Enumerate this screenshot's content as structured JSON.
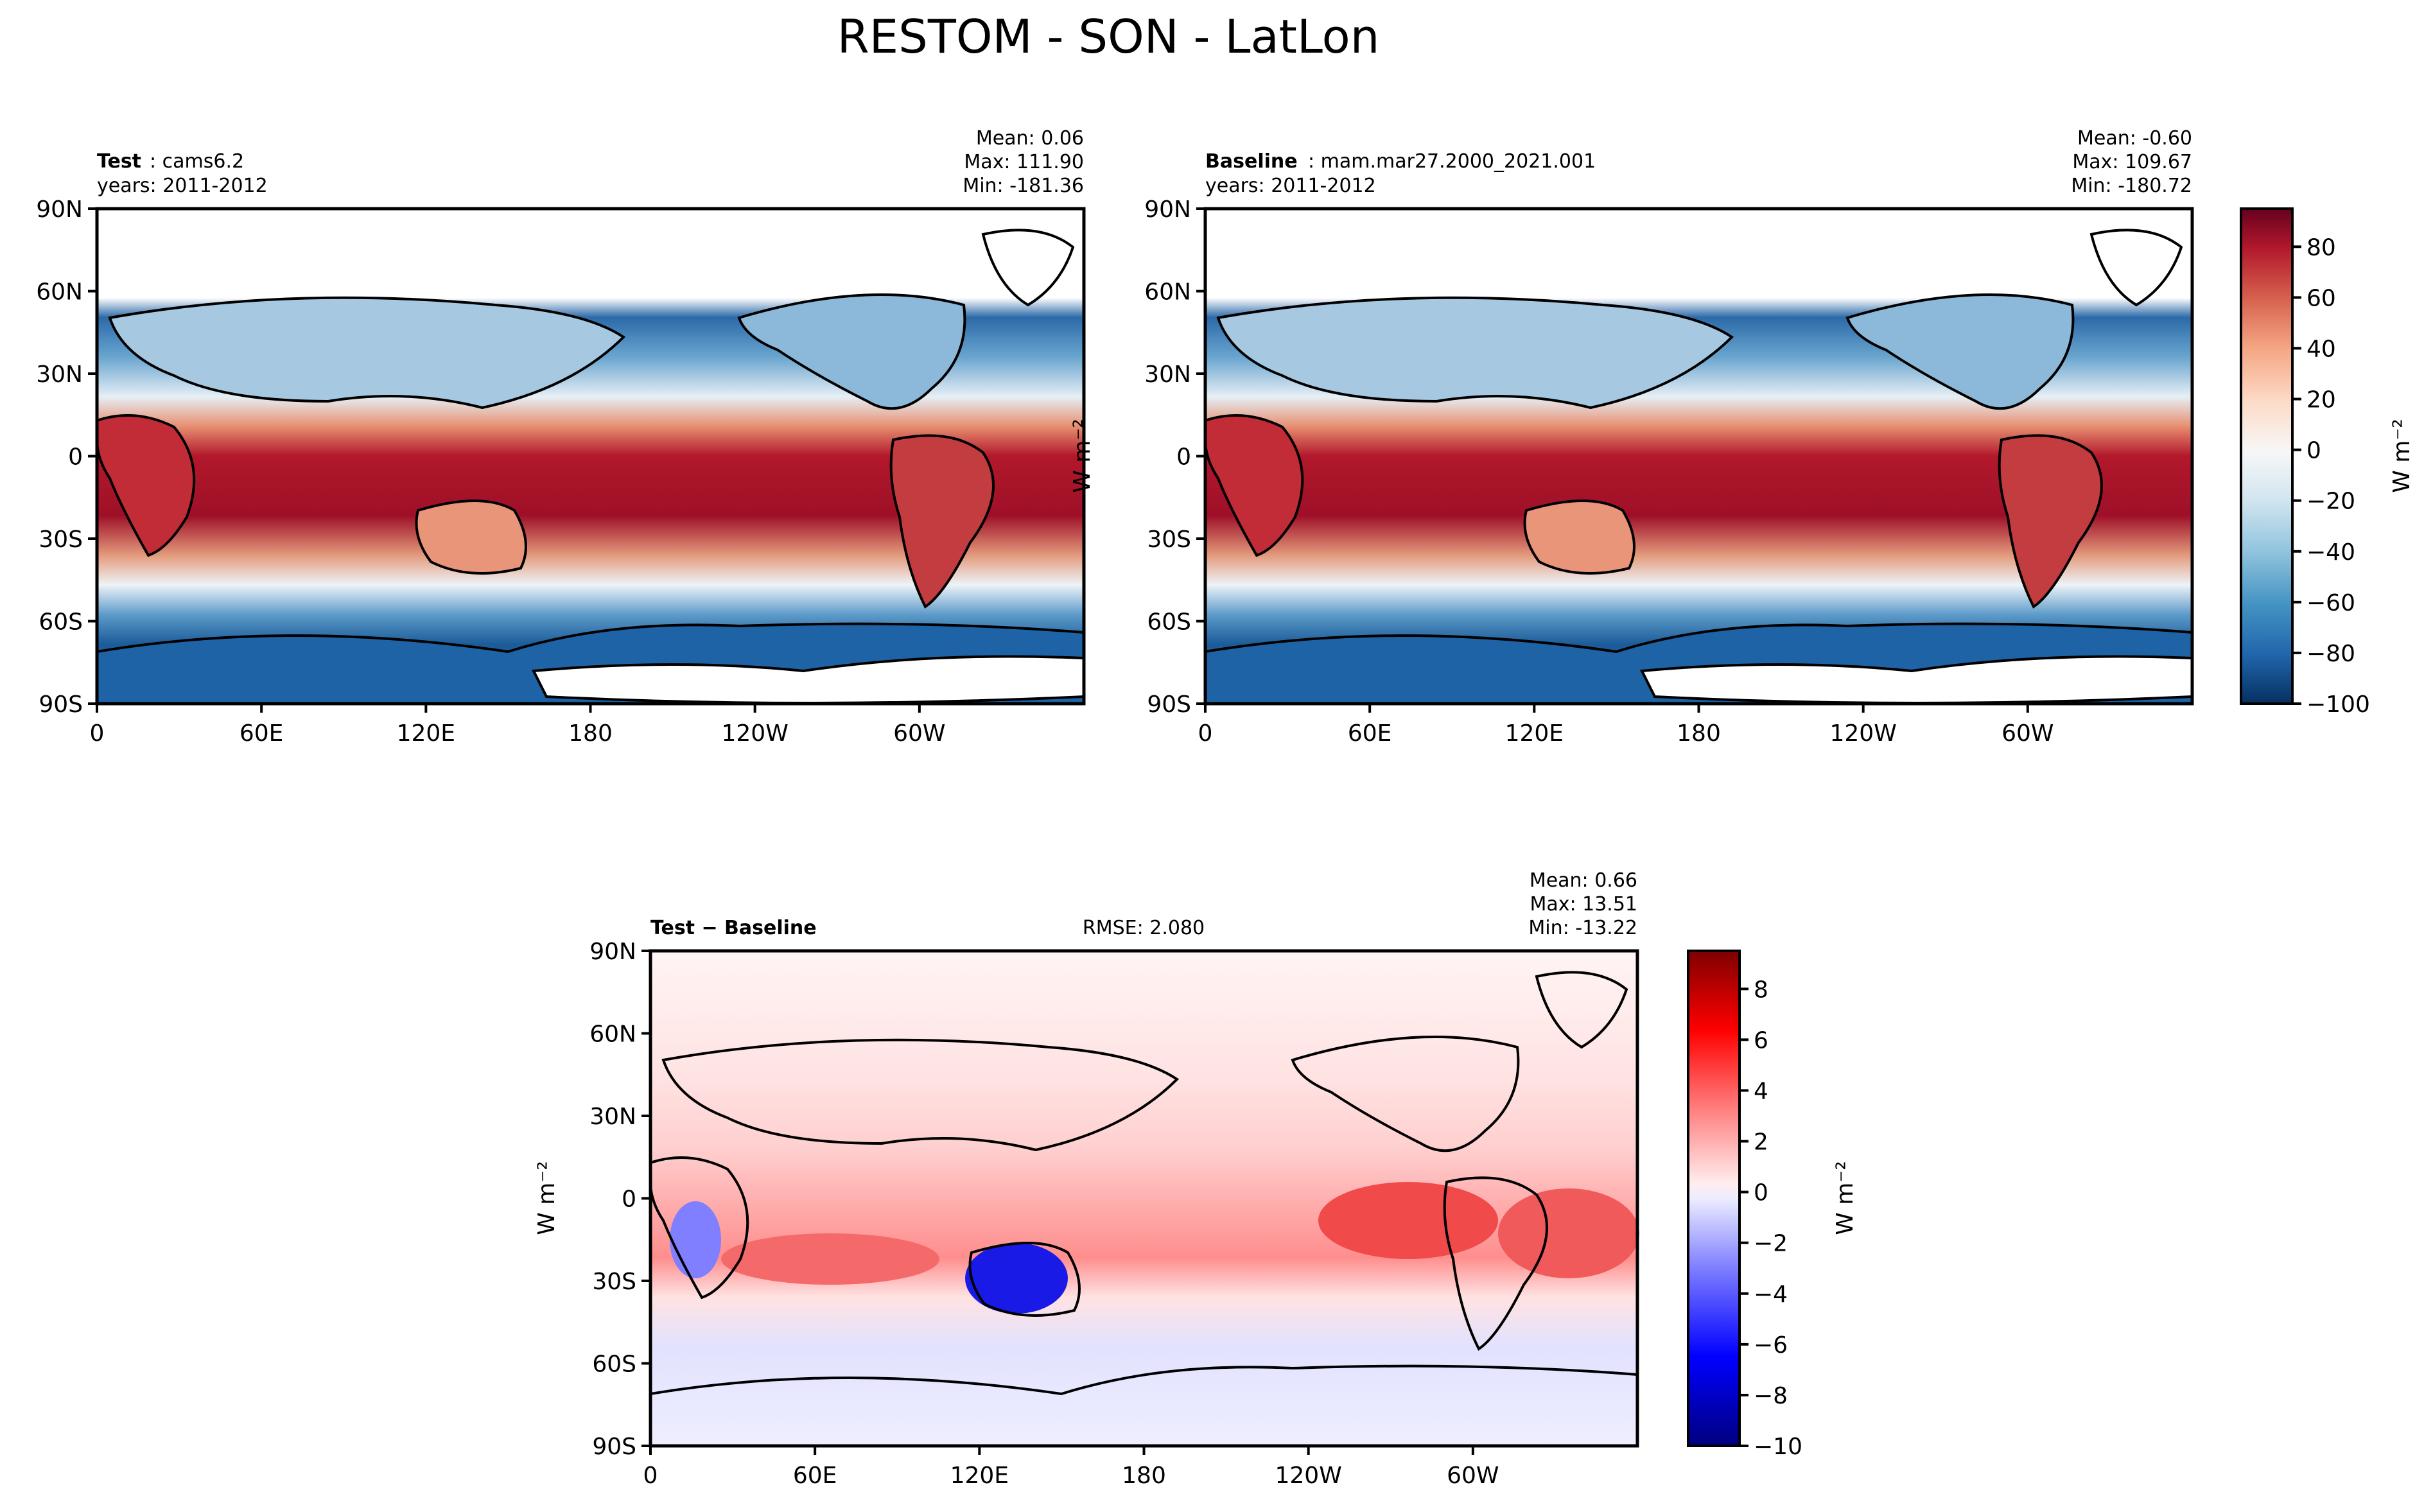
{
  "figure": {
    "title": "RESTOM - SON - LatLon"
  },
  "chart_data": [
    {
      "type": "heatmap",
      "panel": "test",
      "label_bold": "Test",
      "label_rest": ": cams6.2",
      "years": "years: 2011-2012",
      "stats": {
        "mean": "Mean:  0.06",
        "max": "Max: 111.90",
        "min": "Min: -181.36"
      },
      "x_ticks": [
        "0",
        "60E",
        "120E",
        "180",
        "120W",
        "60W"
      ],
      "x_tick_lons": [
        0,
        60,
        120,
        180,
        240,
        300
      ],
      "y_ticks": [
        "90N",
        "60N",
        "30N",
        "0",
        "30S",
        "60S",
        "90S"
      ],
      "y_tick_lats": [
        90,
        60,
        30,
        0,
        -30,
        -60,
        -90
      ],
      "xlim": [
        0,
        360
      ],
      "ylim": [
        -90,
        90
      ]
    },
    {
      "type": "heatmap",
      "panel": "baseline",
      "label_bold": "Baseline",
      "label_rest": ": mam.mar27.2000_2021.001",
      "years": "years: 2011-2012",
      "stats": {
        "mean": "Mean: -0.60",
        "max": "Max: 109.67",
        "min": "Min: -180.72"
      },
      "x_ticks": [
        "0",
        "60E",
        "120E",
        "180",
        "120W",
        "60W"
      ],
      "x_tick_lons": [
        0,
        60,
        120,
        180,
        240,
        300
      ],
      "y_ticks": [
        "90N",
        "60N",
        "30N",
        "0",
        "30S",
        "60S",
        "90S"
      ],
      "y_tick_lats": [
        90,
        60,
        30,
        0,
        -30,
        -60,
        -90
      ],
      "xlim": [
        0,
        360
      ],
      "ylim": [
        -90,
        90
      ],
      "ylabel": "W m⁻²",
      "colorbar": {
        "label": "W m⁻²",
        "range": [
          -100,
          95
        ],
        "ticks": [
          "80",
          "60",
          "40",
          "20",
          "0",
          "−20",
          "−40",
          "−60",
          "−80",
          "−100"
        ],
        "tick_values": [
          80,
          60,
          40,
          20,
          0,
          -20,
          -40,
          -60,
          -80,
          -100
        ],
        "colors": [
          "#053061",
          "#2166ac",
          "#4393c3",
          "#92c5de",
          "#d1e5f0",
          "#f7f7f7",
          "#fddbc7",
          "#f4a582",
          "#d6604d",
          "#b2182b",
          "#67001f"
        ]
      }
    },
    {
      "type": "heatmap",
      "panel": "difference",
      "label_bold": "Test − Baseline",
      "rmse": "RMSE: 2.080",
      "stats": {
        "mean": "Mean:  0.66",
        "max": "Max: 13.51",
        "min": "Min: -13.22"
      },
      "x_ticks": [
        "0",
        "60E",
        "120E",
        "180",
        "120W",
        "60W"
      ],
      "x_tick_lons": [
        0,
        60,
        120,
        180,
        240,
        300
      ],
      "y_ticks": [
        "90N",
        "60N",
        "30N",
        "0",
        "30S",
        "60S",
        "90S"
      ],
      "y_tick_lats": [
        90,
        60,
        30,
        0,
        -30,
        -60,
        -90
      ],
      "xlim": [
        0,
        360
      ],
      "ylim": [
        -90,
        90
      ],
      "ylabel": "W m⁻²",
      "colorbar": {
        "label": "W m⁻²",
        "range": [
          -10,
          9.5
        ],
        "ticks": [
          "8",
          "6",
          "4",
          "2",
          "0",
          "−2",
          "−4",
          "−6",
          "−8",
          "−10"
        ],
        "tick_values": [
          8,
          6,
          4,
          2,
          0,
          -2,
          -4,
          -6,
          -8,
          -10
        ],
        "colors": [
          "#00007f",
          "#0000ff",
          "#7f7fff",
          "#ededff",
          "#ffeded",
          "#ff7f7f",
          "#ff0000",
          "#7f0000"
        ]
      }
    }
  ]
}
